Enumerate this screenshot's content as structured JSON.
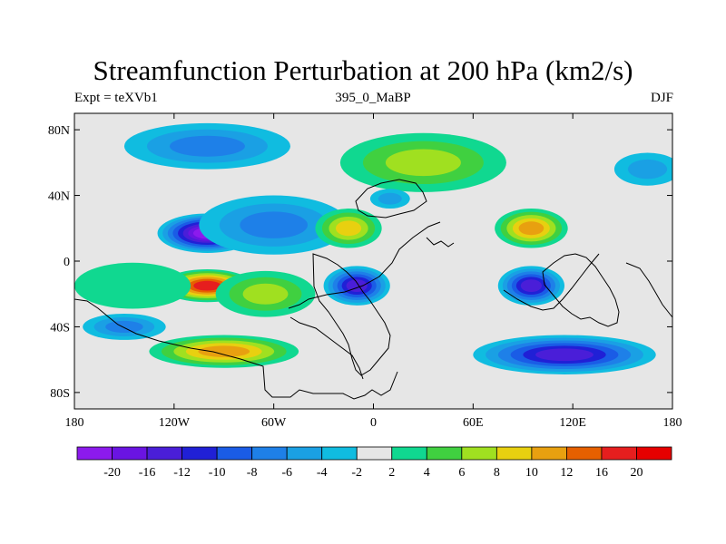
{
  "title": "Streamfunction Perturbation at 200 hPa (km2/s)",
  "subtitle_left": "Expt = teXVb1",
  "subtitle_center": "395_0_MaBP",
  "subtitle_right": "DJF",
  "chart_data": {
    "type": "heatmap",
    "title": "Streamfunction Perturbation at 200 hPa (km2/s)",
    "variable": "streamfunction perturbation",
    "units": "km2/s",
    "level": "200 hPa",
    "season": "DJF",
    "x_axis": {
      "range": [
        -180,
        180
      ],
      "ticks": [
        -180,
        -120,
        -60,
        0,
        60,
        120,
        180
      ],
      "tick_labels": [
        "180",
        "120W",
        "60W",
        "0",
        "60E",
        "120E",
        "180"
      ]
    },
    "y_axis": {
      "range": [
        -90,
        90
      ],
      "ticks": [
        80,
        40,
        0,
        -40,
        -80
      ],
      "tick_labels": [
        "80N",
        "40N",
        "0",
        "40S",
        "80S"
      ]
    },
    "colorbar": {
      "levels": [
        -20,
        -16,
        -12,
        -10,
        -8,
        -6,
        -4,
        -2,
        2,
        4,
        6,
        8,
        10,
        12,
        16,
        20
      ],
      "tick_labels": [
        "-20",
        "-16",
        "-12",
        "-10",
        "-8",
        "-6",
        "-4",
        "-2",
        "2",
        "4",
        "6",
        "8",
        "10",
        "12",
        "16",
        "20"
      ],
      "colors": [
        "#8c1aed",
        "#6a14e2",
        "#4a1ed8",
        "#2020d6",
        "#1a5ce6",
        "#1e80e8",
        "#1aa0e4",
        "#10bce0",
        "#e6e6e6",
        "#10d890",
        "#40d040",
        "#a0e020",
        "#e8d010",
        "#e8a010",
        "#e66000",
        "#e61e1e",
        "#e60000"
      ]
    },
    "features": [
      {
        "lon": -100,
        "lat": 17,
        "value": -20,
        "rx": 30,
        "ry": 12
      },
      {
        "lon": -60,
        "lat": 22,
        "value": -6,
        "rx": 45,
        "ry": 18
      },
      {
        "lon": -100,
        "lat": -15,
        "value": 20,
        "rx": 28,
        "ry": 10
      },
      {
        "lon": -65,
        "lat": -20,
        "value": 8,
        "rx": 30,
        "ry": 14
      },
      {
        "lon": -145,
        "lat": -15,
        "value": 4,
        "rx": 35,
        "ry": 14
      },
      {
        "lon": -100,
        "lat": 70,
        "value": -6,
        "rx": 50,
        "ry": 14
      },
      {
        "lon": 30,
        "lat": 60,
        "value": 8,
        "rx": 50,
        "ry": 18
      },
      {
        "lon": -15,
        "lat": 20,
        "value": 10,
        "rx": 20,
        "ry": 12
      },
      {
        "lon": 95,
        "lat": 20,
        "value": 12,
        "rx": 22,
        "ry": 12
      },
      {
        "lon": -10,
        "lat": -15,
        "value": -12,
        "rx": 20,
        "ry": 12
      },
      {
        "lon": 95,
        "lat": -15,
        "value": -12,
        "rx": 20,
        "ry": 12
      },
      {
        "lon": -150,
        "lat": -40,
        "value": -6,
        "rx": 25,
        "ry": 8
      },
      {
        "lon": -90,
        "lat": -55,
        "value": 12,
        "rx": 45,
        "ry": 10
      },
      {
        "lon": 115,
        "lat": -57,
        "value": -12,
        "rx": 55,
        "ry": 12
      },
      {
        "lon": 165,
        "lat": 56,
        "value": -4,
        "rx": 20,
        "ry": 10
      },
      {
        "lon": 10,
        "lat": 38,
        "value": -4,
        "rx": 12,
        "ry": 6
      }
    ]
  }
}
